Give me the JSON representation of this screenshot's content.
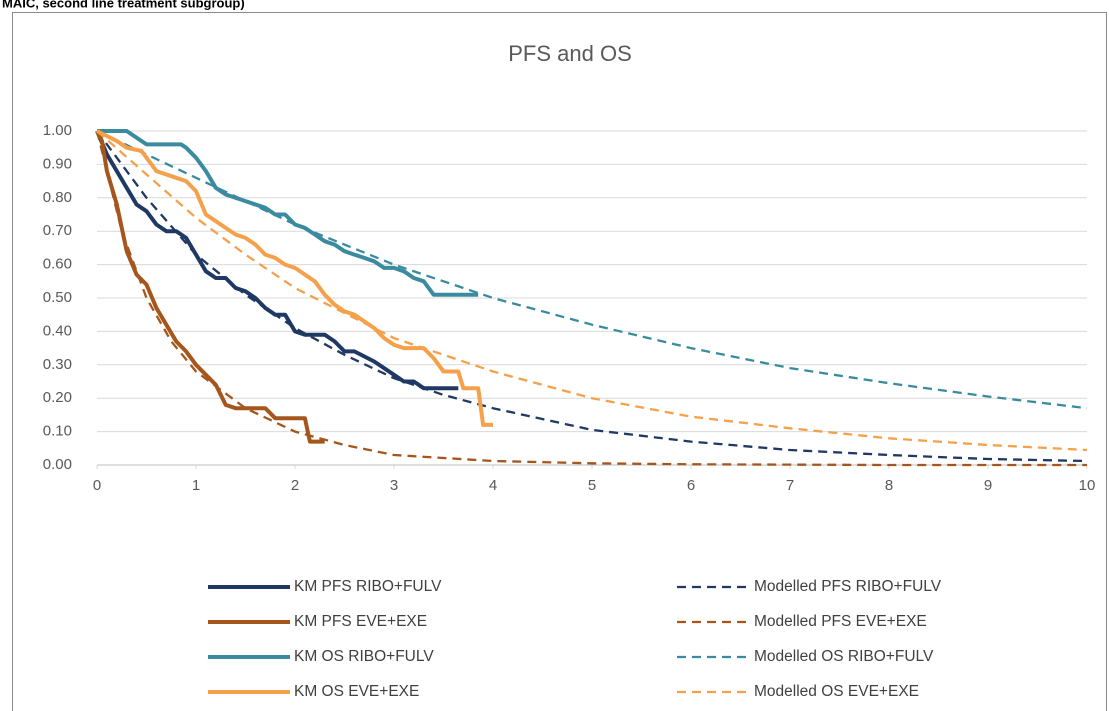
{
  "caption": "MAIC, second line treatment subgroup)",
  "chart_data": {
    "type": "line",
    "title": "PFS and OS",
    "xlim": [
      0,
      10
    ],
    "xticks": [
      0,
      1,
      2,
      3,
      4,
      5,
      6,
      7,
      8,
      9,
      10
    ],
    "ylim": [
      0,
      1
    ],
    "yticks": [
      {
        "value": 0,
        "label": "0.00"
      },
      {
        "value": 0.1,
        "label": "0.10"
      },
      {
        "value": 0.2,
        "label": "0.20"
      },
      {
        "value": 0.3,
        "label": "0.30"
      },
      {
        "value": 0.4,
        "label": "0.40"
      },
      {
        "value": 0.5,
        "label": "0.50"
      },
      {
        "value": 0.6,
        "label": "0.60"
      },
      {
        "value": 0.7,
        "label": "0.70"
      },
      {
        "value": 0.8,
        "label": "0.80"
      },
      {
        "value": 0.9,
        "label": "0.90"
      },
      {
        "value": 1,
        "label": "1.00"
      }
    ],
    "grid": true,
    "legend": "bottom",
    "series": [
      {
        "name": "KM PFS RIBO+FULV",
        "color": "#1f3864",
        "dashed": false,
        "x": [
          0,
          0.1,
          0.2,
          0.3,
          0.4,
          0.5,
          0.6,
          0.7,
          0.8,
          0.9,
          1.0,
          1.1,
          1.2,
          1.3,
          1.4,
          1.5,
          1.6,
          1.7,
          1.8,
          1.9,
          2.0,
          2.1,
          2.3,
          2.4,
          2.5,
          2.6,
          2.8,
          3.0,
          3.1,
          3.2,
          3.3,
          3.65
        ],
        "values": [
          1.0,
          0.93,
          0.88,
          0.83,
          0.78,
          0.76,
          0.72,
          0.7,
          0.7,
          0.68,
          0.63,
          0.58,
          0.56,
          0.56,
          0.53,
          0.52,
          0.5,
          0.47,
          0.45,
          0.45,
          0.4,
          0.39,
          0.39,
          0.37,
          0.34,
          0.34,
          0.31,
          0.27,
          0.25,
          0.25,
          0.23,
          0.23
        ]
      },
      {
        "name": "Modelled PFS RIBO+FULV",
        "color": "#1f3864",
        "dashed": true,
        "x": [
          0,
          0.5,
          1,
          1.5,
          2,
          2.5,
          3,
          3.5,
          4,
          5,
          6,
          7,
          8,
          9,
          10
        ],
        "values": [
          1.0,
          0.8,
          0.63,
          0.51,
          0.41,
          0.33,
          0.26,
          0.21,
          0.17,
          0.105,
          0.07,
          0.045,
          0.03,
          0.018,
          0.012
        ]
      },
      {
        "name": "KM PFS EVE+EXE",
        "color": "#a5561d",
        "dashed": false,
        "x": [
          0,
          0.05,
          0.1,
          0.2,
          0.3,
          0.4,
          0.5,
          0.6,
          0.7,
          0.8,
          0.9,
          1.0,
          1.1,
          1.2,
          1.3,
          1.4,
          1.7,
          1.8,
          2.1,
          2.15,
          2.3
        ],
        "values": [
          1.0,
          0.97,
          0.88,
          0.78,
          0.64,
          0.57,
          0.54,
          0.47,
          0.42,
          0.37,
          0.34,
          0.3,
          0.27,
          0.24,
          0.18,
          0.17,
          0.17,
          0.14,
          0.14,
          0.07,
          0.07
        ]
      },
      {
        "name": "Modelled PFS EVE+EXE",
        "color": "#a5561d",
        "dashed": true,
        "x": [
          0,
          0.25,
          0.5,
          0.75,
          1,
          1.5,
          2,
          2.5,
          3,
          4,
          5,
          6,
          8,
          10
        ],
        "values": [
          1.0,
          0.7,
          0.5,
          0.37,
          0.28,
          0.17,
          0.1,
          0.06,
          0.03,
          0.012,
          0.005,
          0.002,
          0,
          0
        ]
      },
      {
        "name": "KM OS RIBO+FULV",
        "color": "#3b8ba0",
        "dashed": false,
        "x": [
          0,
          0.3,
          0.5,
          0.85,
          0.9,
          1.0,
          1.1,
          1.2,
          1.3,
          1.5,
          1.7,
          1.8,
          1.9,
          2.0,
          2.1,
          2.2,
          2.3,
          2.4,
          2.5,
          2.6,
          2.7,
          2.8,
          2.9,
          3.0,
          3.1,
          3.2,
          3.3,
          3.4,
          3.5,
          3.85
        ],
        "values": [
          1.0,
          1.0,
          0.96,
          0.96,
          0.95,
          0.92,
          0.88,
          0.83,
          0.81,
          0.79,
          0.77,
          0.75,
          0.75,
          0.72,
          0.71,
          0.69,
          0.67,
          0.66,
          0.64,
          0.63,
          0.62,
          0.61,
          0.59,
          0.59,
          0.58,
          0.56,
          0.55,
          0.51,
          0.51,
          0.51
        ]
      },
      {
        "name": "Modelled OS RIBO+FULV",
        "color": "#3b8ba0",
        "dashed": true,
        "x": [
          0,
          1,
          2,
          3,
          4,
          5,
          6,
          7,
          8,
          9,
          10
        ],
        "values": [
          1.0,
          0.86,
          0.72,
          0.6,
          0.5,
          0.42,
          0.35,
          0.29,
          0.245,
          0.205,
          0.17
        ]
      },
      {
        "name": "KM OS EVE+EXE",
        "color": "#f5a04a",
        "dashed": false,
        "x": [
          0,
          0.2,
          0.3,
          0.45,
          0.5,
          0.6,
          0.8,
          0.9,
          1.0,
          1.1,
          1.2,
          1.3,
          1.4,
          1.5,
          1.6,
          1.7,
          1.8,
          1.9,
          2.0,
          2.1,
          2.2,
          2.3,
          2.4,
          2.5,
          2.6,
          2.7,
          2.8,
          2.9,
          3.0,
          3.1,
          3.3,
          3.4,
          3.5,
          3.65,
          3.7,
          3.85,
          3.9,
          4.0
        ],
        "values": [
          1.0,
          0.97,
          0.95,
          0.94,
          0.92,
          0.88,
          0.86,
          0.85,
          0.82,
          0.75,
          0.73,
          0.71,
          0.69,
          0.68,
          0.66,
          0.63,
          0.62,
          0.6,
          0.59,
          0.57,
          0.55,
          0.51,
          0.48,
          0.46,
          0.45,
          0.43,
          0.41,
          0.38,
          0.36,
          0.35,
          0.35,
          0.32,
          0.28,
          0.28,
          0.23,
          0.23,
          0.12,
          0.12
        ]
      },
      {
        "name": "Modelled OS EVE+EXE",
        "color": "#f5a04a",
        "dashed": true,
        "x": [
          0,
          0.5,
          1,
          1.5,
          2,
          3,
          4,
          5,
          6,
          7,
          8,
          9,
          10
        ],
        "values": [
          1.0,
          0.87,
          0.74,
          0.63,
          0.53,
          0.38,
          0.28,
          0.2,
          0.145,
          0.11,
          0.08,
          0.06,
          0.045
        ]
      }
    ]
  }
}
